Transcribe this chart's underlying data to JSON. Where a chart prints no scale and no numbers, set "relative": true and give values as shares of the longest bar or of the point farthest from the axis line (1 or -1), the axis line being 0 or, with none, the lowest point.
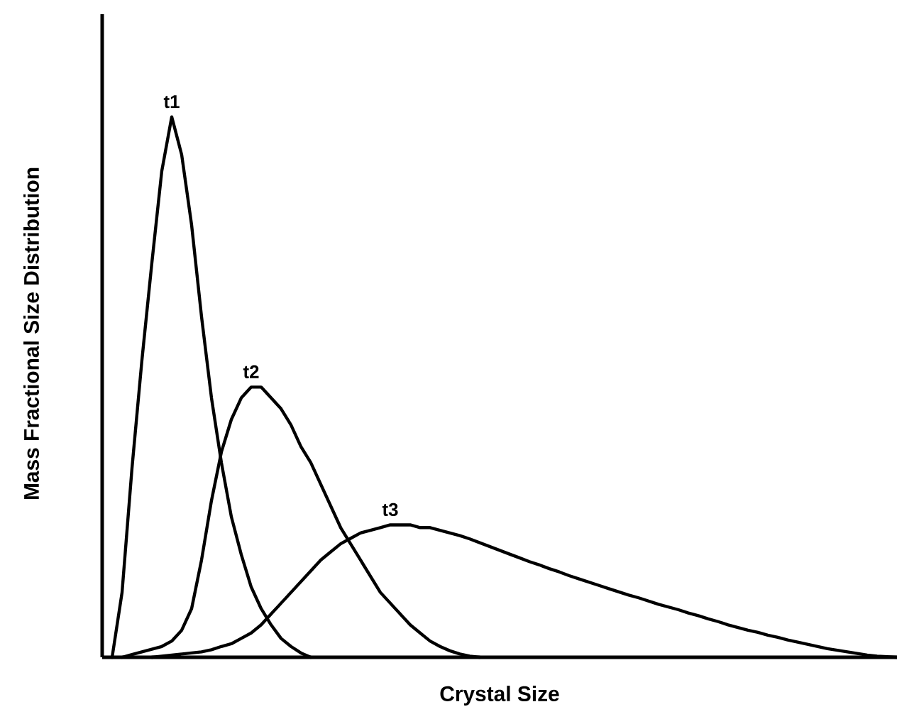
{
  "chart_data": {
    "type": "line",
    "relative": true,
    "xlabel": "Crystal Size",
    "ylabel": "Mass Fractional Size Distribution",
    "categories": [
      null,
      null,
      null,
      null,
      null,
      null,
      null,
      null,
      null,
      null,
      null,
      null,
      null,
      null,
      null,
      null,
      null,
      null,
      null,
      null,
      null,
      null,
      null,
      null,
      null,
      null,
      null,
      null,
      null,
      null,
      null,
      null,
      null,
      null,
      null,
      null,
      null,
      null,
      null,
      null,
      null,
      null,
      null,
      null,
      null,
      null,
      null,
      null,
      null,
      null,
      null,
      null,
      null,
      null,
      null,
      null,
      null,
      null,
      null,
      null,
      null,
      null,
      null,
      null,
      null,
      null,
      null,
      null,
      null,
      null,
      null,
      null,
      null,
      null,
      null,
      null,
      null,
      null,
      null,
      null,
      null
    ],
    "series": [
      {
        "name": "t1",
        "color": "#000000",
        "values": [
          null,
          0,
          0.12,
          0.35,
          0.55,
          0.73,
          0.9,
          1.0,
          0.93,
          0.8,
          0.63,
          0.48,
          0.36,
          0.26,
          0.19,
          0.13,
          0.09,
          0.06,
          0.035,
          0.02,
          0.008,
          0,
          null,
          null,
          null,
          null,
          null,
          null,
          null,
          null,
          null,
          null,
          null,
          null,
          null,
          null,
          null,
          null,
          null,
          null,
          null,
          null,
          null,
          null,
          null,
          null,
          null,
          null,
          null,
          null,
          null,
          null,
          null,
          null,
          null,
          null,
          null,
          null,
          null,
          null,
          null,
          null,
          null,
          null,
          null,
          null,
          null,
          null,
          null,
          null,
          null,
          null,
          null,
          null,
          null,
          null,
          null,
          null,
          null,
          null,
          null
        ]
      },
      {
        "name": "t2",
        "color": "#000000",
        "values": [
          null,
          null,
          0,
          0.005,
          0.01,
          0.015,
          0.02,
          0.03,
          0.05,
          0.09,
          0.18,
          0.29,
          0.38,
          0.44,
          0.48,
          0.5,
          0.5,
          0.48,
          0.46,
          0.43,
          0.39,
          0.36,
          0.32,
          0.28,
          0.24,
          0.21,
          0.18,
          0.15,
          0.12,
          0.1,
          0.08,
          0.06,
          0.045,
          0.03,
          0.02,
          0.012,
          0.006,
          0.002,
          0,
          null,
          null,
          null,
          null,
          null,
          null,
          null,
          null,
          null,
          null,
          null,
          null,
          null,
          null,
          null,
          null,
          null,
          null,
          null,
          null,
          null,
          null,
          null,
          null,
          null,
          null,
          null,
          null,
          null,
          null,
          null,
          null,
          null,
          null,
          null,
          null,
          null,
          null,
          null,
          null,
          null,
          null
        ]
      },
      {
        "name": "t3",
        "color": "#000000",
        "values": [
          null,
          null,
          null,
          null,
          null,
          0,
          0.002,
          0.004,
          0.006,
          0.008,
          0.01,
          0.014,
          0.02,
          0.025,
          0.035,
          0.045,
          0.06,
          0.08,
          0.1,
          0.12,
          0.14,
          0.16,
          0.18,
          0.195,
          0.21,
          0.22,
          0.23,
          0.235,
          0.24,
          0.245,
          0.245,
          0.245,
          0.24,
          0.24,
          0.235,
          0.23,
          0.225,
          0.219,
          0.212,
          0.205,
          0.198,
          0.191,
          0.184,
          0.177,
          0.171,
          0.164,
          0.158,
          0.151,
          0.145,
          0.139,
          0.133,
          0.127,
          0.121,
          0.115,
          0.11,
          0.104,
          0.098,
          0.093,
          0.088,
          0.082,
          0.077,
          0.071,
          0.066,
          0.06,
          0.055,
          0.05,
          0.046,
          0.041,
          0.037,
          0.032,
          0.028,
          0.024,
          0.02,
          0.016,
          0.013,
          0.01,
          0.007,
          0.004,
          0.002,
          0.001,
          0
        ]
      }
    ]
  }
}
